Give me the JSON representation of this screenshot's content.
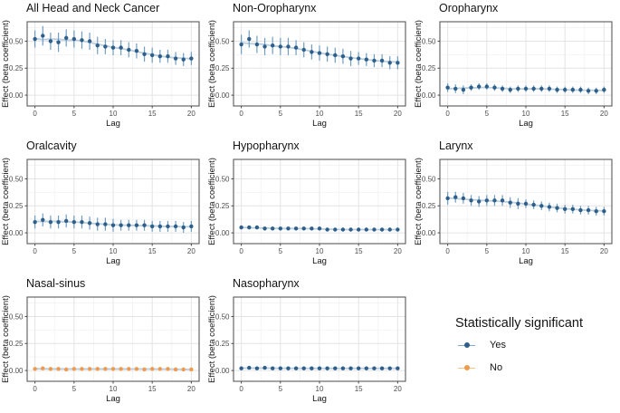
{
  "legend": {
    "title": "Statistically significant",
    "items": [
      {
        "label": "Yes",
        "color": "#2E5F8A",
        "line_color": "#7FA8CB"
      },
      {
        "label": "No",
        "color": "#EF9A4D",
        "line_color": "#F5C289"
      }
    ]
  },
  "style": {
    "point_yes": "#2E5F8A",
    "error_yes": "#6F9DC4",
    "point_no": "#EF9A4D",
    "error_no": "#F6C28C",
    "smooth_line": "#B9CFE0",
    "grid_major": "#E4E4E4",
    "grid_minor": "#F2F2F2",
    "panel_border": "#4A4A4A",
    "tick_mark": "#474747",
    "tick_label": "#4D4D4D",
    "axis_title": "#141414"
  },
  "chart_data": [
    {
      "type": "scatter",
      "title": "All Head and Neck Cancer",
      "xlabel": "Lag",
      "ylabel": "Effect (beta coefficient)",
      "significant": "Yes",
      "x": [
        0,
        1,
        2,
        3,
        4,
        5,
        6,
        7,
        8,
        9,
        10,
        11,
        12,
        13,
        14,
        15,
        16,
        17,
        18,
        19,
        20
      ],
      "values": [
        0.52,
        0.55,
        0.5,
        0.49,
        0.53,
        0.52,
        0.51,
        0.5,
        0.46,
        0.45,
        0.44,
        0.44,
        0.42,
        0.41,
        0.38,
        0.37,
        0.36,
        0.36,
        0.34,
        0.33,
        0.34
      ],
      "errors": [
        0.08,
        0.09,
        0.08,
        0.09,
        0.08,
        0.08,
        0.08,
        0.08,
        0.08,
        0.07,
        0.07,
        0.07,
        0.07,
        0.07,
        0.07,
        0.07,
        0.06,
        0.06,
        0.06,
        0.06,
        0.06
      ],
      "xticks": [
        0,
        5,
        10,
        15,
        20
      ],
      "yticks": [
        0.0,
        0.25,
        0.5
      ],
      "ylim": [
        -0.1,
        0.68
      ]
    },
    {
      "type": "scatter",
      "title": "Non-Oropharynx",
      "xlabel": "Lag",
      "ylabel": "Effect (beta coefficient)",
      "significant": "Yes",
      "x": [
        0,
        1,
        2,
        3,
        4,
        5,
        6,
        7,
        8,
        9,
        10,
        11,
        12,
        13,
        14,
        15,
        16,
        17,
        18,
        19,
        20
      ],
      "values": [
        0.47,
        0.52,
        0.47,
        0.45,
        0.46,
        0.45,
        0.45,
        0.44,
        0.42,
        0.4,
        0.39,
        0.38,
        0.37,
        0.36,
        0.34,
        0.34,
        0.33,
        0.32,
        0.32,
        0.3,
        0.3
      ],
      "errors": [
        0.09,
        0.08,
        0.08,
        0.08,
        0.08,
        0.08,
        0.08,
        0.07,
        0.07,
        0.07,
        0.07,
        0.07,
        0.07,
        0.07,
        0.07,
        0.06,
        0.06,
        0.06,
        0.06,
        0.06,
        0.06
      ],
      "xticks": [
        0,
        5,
        10,
        15,
        20
      ],
      "yticks": [
        0.0,
        0.25,
        0.5
      ],
      "ylim": [
        -0.1,
        0.68
      ]
    },
    {
      "type": "scatter",
      "title": "Oropharynx",
      "xlabel": "Lag",
      "ylabel": "Effect (beta coefficient)",
      "significant": "Yes",
      "x": [
        0,
        1,
        2,
        3,
        4,
        5,
        6,
        7,
        8,
        9,
        10,
        11,
        12,
        13,
        14,
        15,
        16,
        17,
        18,
        19,
        20
      ],
      "values": [
        0.07,
        0.06,
        0.05,
        0.07,
        0.08,
        0.08,
        0.07,
        0.06,
        0.05,
        0.06,
        0.06,
        0.06,
        0.06,
        0.06,
        0.05,
        0.05,
        0.05,
        0.05,
        0.04,
        0.04,
        0.05
      ],
      "errors": [
        0.04,
        0.04,
        0.04,
        0.03,
        0.03,
        0.03,
        0.03,
        0.03,
        0.03,
        0.03,
        0.03,
        0.03,
        0.03,
        0.03,
        0.03,
        0.03,
        0.03,
        0.03,
        0.03,
        0.03,
        0.03
      ],
      "xticks": [
        0,
        5,
        10,
        15,
        20
      ],
      "yticks": [
        0.0,
        0.25,
        0.5
      ],
      "ylim": [
        -0.1,
        0.68
      ]
    },
    {
      "type": "scatter",
      "title": "Oralcavity",
      "xlabel": "Lag",
      "ylabel": "Effect (beta coefficient)",
      "significant": "Yes",
      "x": [
        0,
        1,
        2,
        3,
        4,
        5,
        6,
        7,
        8,
        9,
        10,
        11,
        12,
        13,
        14,
        15,
        16,
        17,
        18,
        19,
        20
      ],
      "values": [
        0.1,
        0.12,
        0.1,
        0.1,
        0.11,
        0.1,
        0.1,
        0.09,
        0.08,
        0.08,
        0.07,
        0.07,
        0.07,
        0.07,
        0.07,
        0.06,
        0.06,
        0.06,
        0.06,
        0.05,
        0.06
      ],
      "errors": [
        0.06,
        0.06,
        0.06,
        0.06,
        0.06,
        0.06,
        0.06,
        0.06,
        0.06,
        0.06,
        0.06,
        0.05,
        0.05,
        0.05,
        0.05,
        0.05,
        0.05,
        0.05,
        0.05,
        0.05,
        0.05
      ],
      "xticks": [
        0,
        5,
        10,
        15,
        20
      ],
      "yticks": [
        0.0,
        0.25,
        0.5
      ],
      "ylim": [
        -0.1,
        0.68
      ]
    },
    {
      "type": "scatter",
      "title": "Hypopharynx",
      "xlabel": "Lag",
      "ylabel": "Effect (beta coefficient)",
      "significant": "Yes",
      "x": [
        0,
        1,
        2,
        3,
        4,
        5,
        6,
        7,
        8,
        9,
        10,
        11,
        12,
        13,
        14,
        15,
        16,
        17,
        18,
        19,
        20
      ],
      "values": [
        0.05,
        0.05,
        0.05,
        0.04,
        0.04,
        0.04,
        0.04,
        0.04,
        0.04,
        0.04,
        0.04,
        0.03,
        0.03,
        0.03,
        0.03,
        0.03,
        0.03,
        0.03,
        0.03,
        0.03,
        0.03
      ],
      "errors": [
        0.015,
        0.015,
        0.015,
        0.015,
        0.015,
        0.015,
        0.015,
        0.015,
        0.015,
        0.015,
        0.015,
        0.015,
        0.015,
        0.015,
        0.015,
        0.015,
        0.015,
        0.015,
        0.015,
        0.015,
        0.015
      ],
      "xticks": [
        0,
        5,
        10,
        15,
        20
      ],
      "yticks": [
        0.0,
        0.25,
        0.5
      ],
      "ylim": [
        -0.1,
        0.68
      ]
    },
    {
      "type": "scatter",
      "title": "Larynx",
      "xlabel": "Lag",
      "ylabel": "Effect (beta coefficient)",
      "significant": "Yes",
      "x": [
        0,
        1,
        2,
        3,
        4,
        5,
        6,
        7,
        8,
        9,
        10,
        11,
        12,
        13,
        14,
        15,
        16,
        17,
        18,
        19,
        20
      ],
      "values": [
        0.32,
        0.33,
        0.32,
        0.3,
        0.29,
        0.3,
        0.3,
        0.3,
        0.28,
        0.27,
        0.27,
        0.26,
        0.25,
        0.24,
        0.23,
        0.22,
        0.22,
        0.21,
        0.21,
        0.2,
        0.2
      ],
      "errors": [
        0.06,
        0.05,
        0.05,
        0.05,
        0.05,
        0.05,
        0.05,
        0.05,
        0.05,
        0.05,
        0.04,
        0.04,
        0.04,
        0.04,
        0.04,
        0.04,
        0.04,
        0.04,
        0.04,
        0.04,
        0.04
      ],
      "xticks": [
        0,
        5,
        10,
        15,
        20
      ],
      "yticks": [
        0.0,
        0.25,
        0.5
      ],
      "ylim": [
        -0.1,
        0.68
      ]
    },
    {
      "type": "scatter",
      "title": "Nasal-sinus",
      "xlabel": "Lag",
      "ylabel": "Effect (beta coefficient)",
      "significant": "No",
      "x": [
        0,
        1,
        2,
        3,
        4,
        5,
        6,
        7,
        8,
        9,
        10,
        11,
        12,
        13,
        14,
        15,
        16,
        17,
        18,
        19,
        20
      ],
      "values": [
        0.015,
        0.02,
        0.015,
        0.015,
        0.01,
        0.015,
        0.015,
        0.015,
        0.015,
        0.015,
        0.015,
        0.015,
        0.015,
        0.015,
        0.01,
        0.015,
        0.015,
        0.015,
        0.01,
        0.01,
        0.01
      ],
      "errors": [
        0.012,
        0.012,
        0.012,
        0.012,
        0.012,
        0.012,
        0.012,
        0.012,
        0.012,
        0.012,
        0.012,
        0.012,
        0.012,
        0.012,
        0.012,
        0.012,
        0.012,
        0.012,
        0.012,
        0.012,
        0.012
      ],
      "xticks": [
        0,
        5,
        10,
        15,
        20
      ],
      "yticks": [
        0.0,
        0.25,
        0.5
      ],
      "ylim": [
        -0.1,
        0.68
      ]
    },
    {
      "type": "scatter",
      "title": "Nasopharynx",
      "xlabel": "Lag",
      "ylabel": "Effect (beta coefficient)",
      "significant": "Yes",
      "x": [
        0,
        1,
        2,
        3,
        4,
        5,
        6,
        7,
        8,
        9,
        10,
        11,
        12,
        13,
        14,
        15,
        16,
        17,
        18,
        19,
        20
      ],
      "values": [
        0.02,
        0.025,
        0.02,
        0.025,
        0.02,
        0.02,
        0.02,
        0.02,
        0.02,
        0.02,
        0.02,
        0.02,
        0.02,
        0.02,
        0.02,
        0.02,
        0.02,
        0.02,
        0.02,
        0.02,
        0.02
      ],
      "errors": [
        0.012,
        0.012,
        0.012,
        0.012,
        0.012,
        0.012,
        0.012,
        0.012,
        0.012,
        0.012,
        0.012,
        0.012,
        0.012,
        0.012,
        0.012,
        0.012,
        0.012,
        0.012,
        0.012,
        0.012,
        0.012
      ],
      "xticks": [
        0,
        5,
        10,
        15,
        20
      ],
      "yticks": [
        0.0,
        0.25,
        0.5
      ],
      "ylim": [
        -0.1,
        0.68
      ]
    }
  ]
}
